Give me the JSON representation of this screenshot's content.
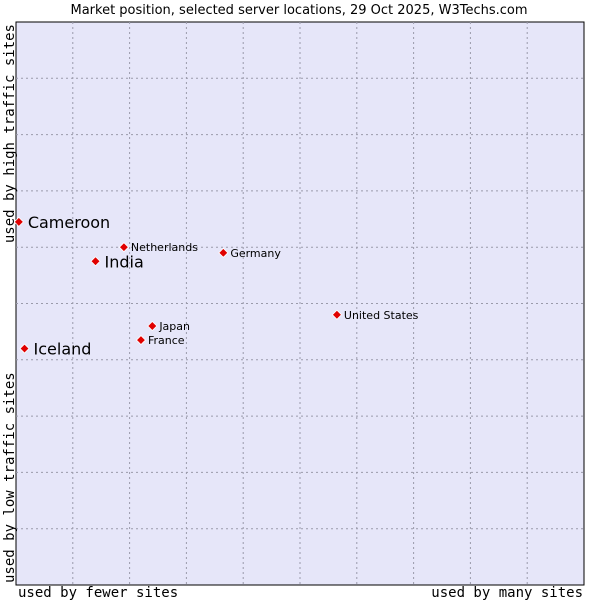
{
  "chart_data": {
    "type": "scatter",
    "title": "Market position, selected server locations, 29 Oct 2025, W3Techs.com",
    "xlabel_left": "used by fewer sites",
    "xlabel_right": "used by many sites",
    "ylabel_bottom": "used by low traffic sites",
    "ylabel_top": "used by high traffic sites",
    "xlim": [
      0,
      100
    ],
    "ylim": [
      0,
      100
    ],
    "grid": true,
    "colors": {
      "background": "#e6e6f9",
      "point": "#e00000",
      "point_stroke": "#ffffff"
    },
    "points": [
      {
        "name": "Cameroon",
        "x": 0.5,
        "y": 64.5,
        "label_size": "large"
      },
      {
        "name": "India",
        "x": 14.0,
        "y": 57.5,
        "label_size": "large"
      },
      {
        "name": "Iceland",
        "x": 1.5,
        "y": 42.0,
        "label_size": "large"
      },
      {
        "name": "Netherlands",
        "x": 19.0,
        "y": 60.0,
        "label_size": "small"
      },
      {
        "name": "Germany",
        "x": 36.5,
        "y": 59.0,
        "label_size": "small"
      },
      {
        "name": "United States",
        "x": 56.5,
        "y": 48.0,
        "label_size": "small"
      },
      {
        "name": "Japan",
        "x": 24.0,
        "y": 46.0,
        "label_size": "small"
      },
      {
        "name": "France",
        "x": 22.0,
        "y": 43.5,
        "label_size": "small"
      }
    ]
  }
}
